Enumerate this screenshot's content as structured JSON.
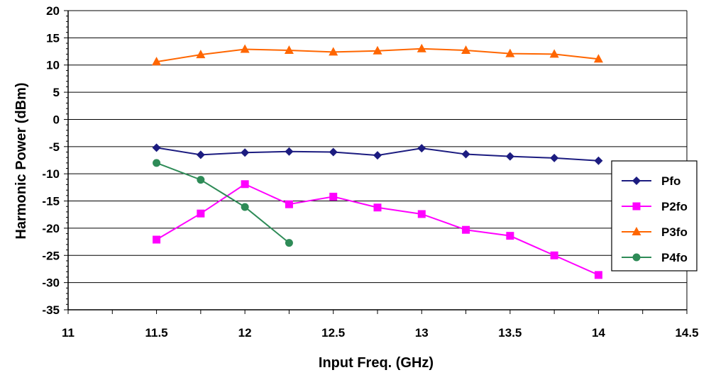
{
  "chart_data": {
    "type": "line",
    "title": "",
    "xlabel": "Input Freq. (GHz)",
    "ylabel": "Harmonic Power (dBm)",
    "xlim": [
      11,
      14.5
    ],
    "ylim": [
      -35,
      20
    ],
    "xticks": [
      11,
      11.5,
      12,
      12.5,
      13,
      13.5,
      14,
      14.5
    ],
    "xtick_labels": [
      "11",
      "11.5",
      "12",
      "12.5",
      "13",
      "13.5",
      "14",
      "14.5"
    ],
    "yticks": [
      20,
      15,
      10,
      5,
      0,
      -5,
      -10,
      -15,
      -20,
      -25,
      -30,
      -35
    ],
    "ytick_labels": [
      "20",
      "15",
      "10",
      "5",
      "0",
      "-5",
      "-10",
      "-15",
      "-20",
      "-25",
      "-30",
      "-35"
    ],
    "grid": "horizontal",
    "legend_position": "right",
    "series": [
      {
        "name": "Pfo",
        "color": "#1c1c80",
        "marker": "diamond",
        "x": [
          11.5,
          11.75,
          12,
          12.25,
          12.5,
          12.75,
          13,
          13.25,
          13.5,
          13.75,
          14
        ],
        "y": [
          -5.2,
          -6.5,
          -6.1,
          -5.9,
          -6.0,
          -6.6,
          -5.3,
          -6.4,
          -6.8,
          -7.1,
          -7.6
        ]
      },
      {
        "name": "P2fo",
        "color": "#ff00ff",
        "marker": "square",
        "x": [
          11.5,
          11.75,
          12,
          12.25,
          12.5,
          12.75,
          13,
          13.25,
          13.5,
          13.75,
          14
        ],
        "y": [
          -22.1,
          -17.3,
          -11.9,
          -15.6,
          -14.2,
          -16.2,
          -17.4,
          -20.3,
          -21.4,
          -25.0,
          -28.6
        ]
      },
      {
        "name": "P3fo",
        "color": "#ff6600",
        "marker": "triangle",
        "x": [
          11.5,
          11.75,
          12,
          12.25,
          12.5,
          12.75,
          13,
          13.25,
          13.5,
          13.75,
          14
        ],
        "y": [
          10.6,
          11.9,
          12.9,
          12.7,
          12.4,
          12.6,
          13.0,
          12.7,
          12.1,
          12.0,
          11.1
        ]
      },
      {
        "name": "P4fo",
        "color": "#2e8b57",
        "marker": "circle",
        "x": [
          11.5,
          11.75,
          12,
          12.25
        ],
        "y": [
          -8.0,
          -11.1,
          -16.1,
          -22.7
        ]
      }
    ]
  }
}
